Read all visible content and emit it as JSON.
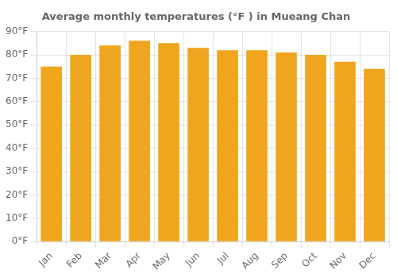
{
  "chart_data": {
    "type": "bar",
    "title": "Average monthly temperatures (°F ) in Mueang Chan",
    "categories": [
      "Jan",
      "Feb",
      "Mar",
      "Apr",
      "May",
      "Jun",
      "Jul",
      "Aug",
      "Sep",
      "Oct",
      "Nov",
      "Dec"
    ],
    "values": [
      75,
      80,
      84,
      86,
      85,
      83,
      82,
      82,
      81,
      80,
      77,
      74
    ],
    "color": "#f0a51f",
    "ylim": [
      0,
      90
    ],
    "yticks": [
      {
        "value": 0,
        "label": "0°F"
      },
      {
        "value": 10,
        "label": "10°F"
      },
      {
        "value": 20,
        "label": "20°F"
      },
      {
        "value": 30,
        "label": "30°F"
      },
      {
        "value": 40,
        "label": "40°F"
      },
      {
        "value": 50,
        "label": "50°F"
      },
      {
        "value": 60,
        "label": "60°F"
      },
      {
        "value": 70,
        "label": "70°F"
      },
      {
        "value": 80,
        "label": "80°F"
      },
      {
        "value": 90,
        "label": "90°F"
      }
    ],
    "grid": true
  }
}
